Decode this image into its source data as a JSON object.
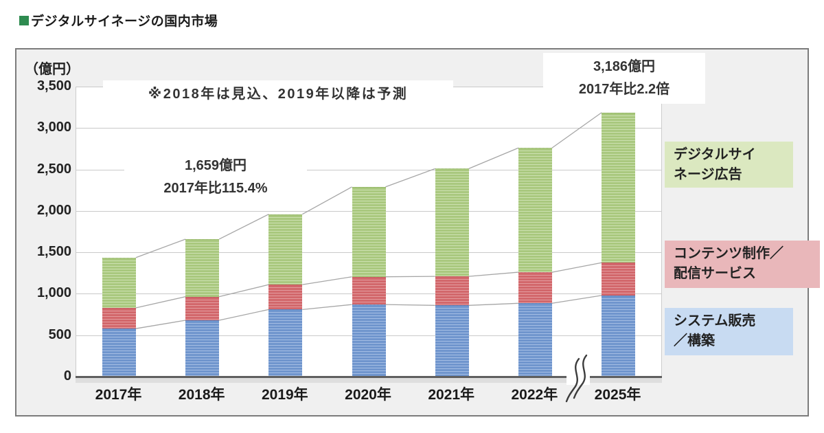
{
  "title": {
    "text": "デジタルサイネージの国内市場",
    "bullet_color": "#2e8b50"
  },
  "chart_data": {
    "type": "bar",
    "stacked": true,
    "title": "デジタルサイネージの国内市場",
    "unit_label": "（億円）",
    "note": "※2018年は見込、2019年以降は予測",
    "categories": [
      "2017年",
      "2018年",
      "2019年",
      "2020年",
      "2021年",
      "2022年",
      "2025年"
    ],
    "axis_break_between": [
      "2022年",
      "2025年"
    ],
    "series": [
      {
        "name": "システム販売／構築",
        "color": "#6f95cd",
        "stripe": "#a5bee4",
        "edge": "#4e79b4",
        "values": [
          580,
          680,
          810,
          870,
          860,
          885,
          980
        ]
      },
      {
        "name": "コンテンツ制作／配信サービス",
        "color": "#d2676b",
        "stripe": "#e39c9f",
        "edge": "#b94f55",
        "values": [
          250,
          285,
          300,
          335,
          350,
          375,
          395
        ]
      },
      {
        "name": "デジタルサイネージ広告",
        "color": "#a9c87e",
        "stripe": "#cde1b2",
        "edge": "#87ab57",
        "values": [
          607,
          694,
          850,
          1085,
          1300,
          1500,
          1811
        ]
      }
    ],
    "totals": [
      1437,
      1659,
      1960,
      2290,
      2510,
      2760,
      3186
    ],
    "ylim": [
      0,
      3500
    ],
    "yticks": [
      {
        "value": 0,
        "label": "0"
      },
      {
        "value": 500,
        "label": "500"
      },
      {
        "value": 1000,
        "label": "1,000"
      },
      {
        "value": 1500,
        "label": "1,500"
      },
      {
        "value": 2000,
        "label": "2,000"
      },
      {
        "value": 2500,
        "label": "2,500"
      },
      {
        "value": 3000,
        "label": "3,000"
      },
      {
        "value": 3500,
        "label": "3,500"
      }
    ],
    "grid": true,
    "legend_position": "right",
    "annotations": [
      {
        "target": "2018年",
        "lines": [
          "1,659億円",
          "2017年比115.4%"
        ]
      },
      {
        "target": "2025年",
        "lines": [
          "3,186億円",
          "2017年比2.2倍"
        ]
      }
    ],
    "legend_items": [
      {
        "name": "デジタルサイネージ広告",
        "lines": [
          "デジタルサイ",
          "ネージ広告"
        ],
        "bg": "#dbe8c0"
      },
      {
        "name": "コンテンツ制作／配信サービス",
        "lines": [
          "コンテンツ制作／",
          "配信サービス"
        ],
        "bg": "#e9b7ba"
      },
      {
        "name": "システム販売／構築",
        "lines": [
          "システム販売",
          "／構築"
        ],
        "bg": "#c8dbf2"
      }
    ],
    "colors": {
      "panel_bg": "#f0f0f0",
      "panel_border": "#7b7b7b",
      "grid": "#c9c9c9",
      "baseline": "#5f5f5f",
      "connector_line": "#a6a6a6",
      "break_mark": "#3c3c3c"
    }
  }
}
